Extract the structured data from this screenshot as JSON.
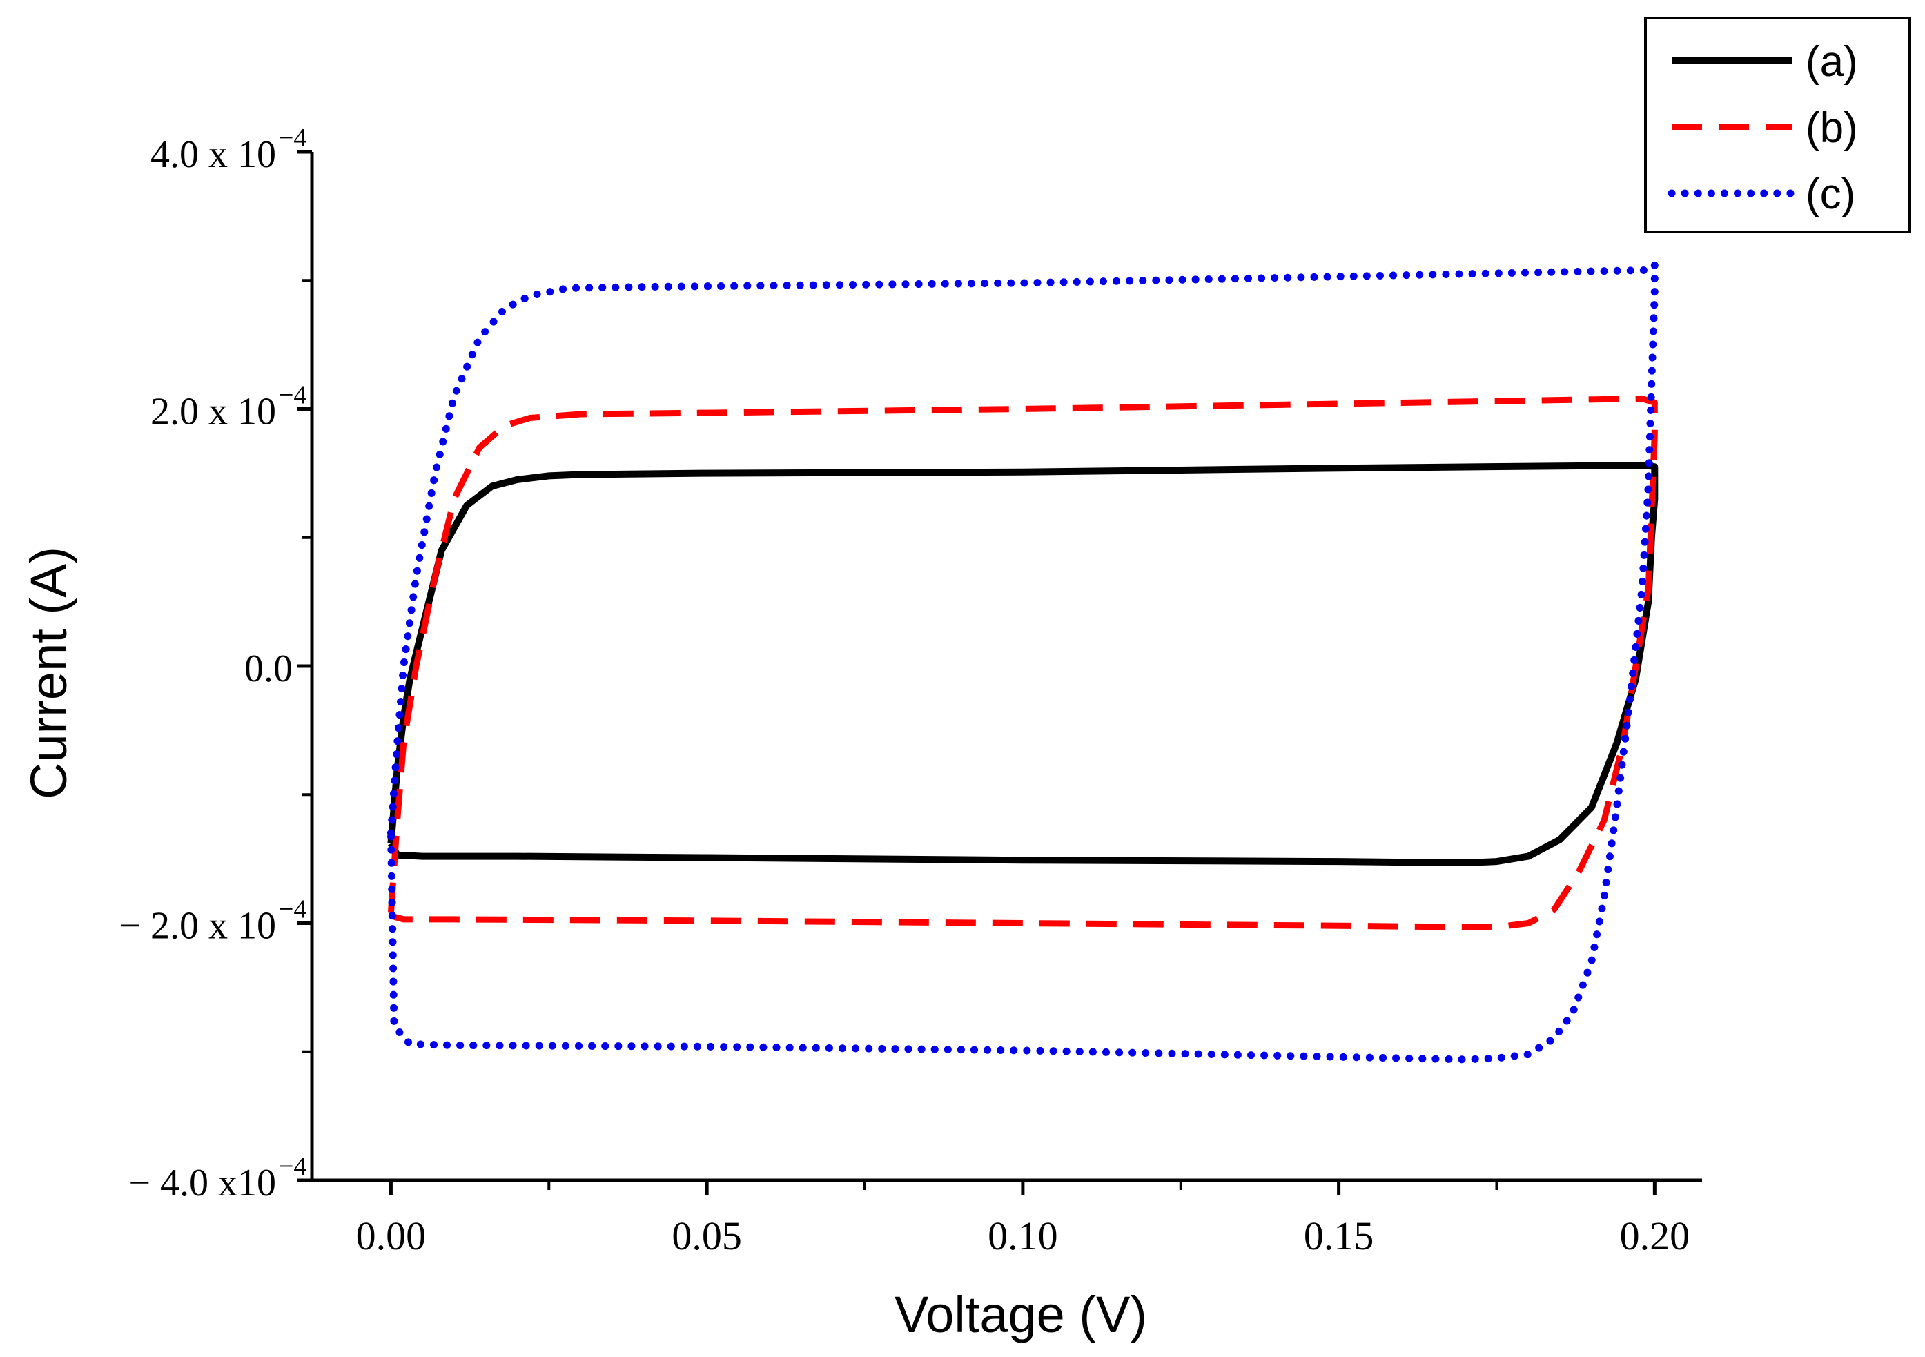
{
  "chart_data": {
    "type": "line",
    "title": "",
    "xlabel": "Voltage (V)",
    "ylabel": "Current (A)",
    "xlim": [
      -0.0125,
      0.2075
    ],
    "ylim": [
      -0.0004,
      0.0004
    ],
    "grid": false,
    "legend_position": "top-right",
    "x_ticks": [
      {
        "value": 0.0,
        "label": "0.00"
      },
      {
        "value": 0.05,
        "label": "0.05"
      },
      {
        "value": 0.1,
        "label": "0.10"
      },
      {
        "value": 0.15,
        "label": "0.15"
      },
      {
        "value": 0.2,
        "label": "0.20"
      }
    ],
    "x_minor_ticks": [
      0.025,
      0.075,
      0.125,
      0.175
    ],
    "y_ticks": [
      {
        "value": 0.0004,
        "mant": "4.0 x 10",
        "exp": "−4"
      },
      {
        "value": 0.0002,
        "mant": "2.0 x 10",
        "exp": "−4"
      },
      {
        "value": 0.0,
        "mant": "0.0",
        "exp": ""
      },
      {
        "value": -0.0002,
        "mant": "− 2.0 x 10",
        "exp": "−4"
      },
      {
        "value": -0.0004,
        "mant": "− 4.0 x10",
        "exp": "−4"
      }
    ],
    "y_minor_ticks": [
      0.0003,
      0.0001,
      -0.0001,
      -0.0003
    ],
    "series": [
      {
        "name": "(a)",
        "color": "#000000",
        "style": "solid",
        "x": [
          0.0,
          0.001,
          0.002,
          0.003,
          0.005,
          0.008,
          0.012,
          0.016,
          0.02,
          0.025,
          0.03,
          0.05,
          0.1,
          0.15,
          0.195,
          0.199,
          0.2,
          0.2,
          0.1995,
          0.199,
          0.197,
          0.194,
          0.19,
          0.185,
          0.18,
          0.175,
          0.17,
          0.15,
          0.1,
          0.05,
          0.02,
          0.005,
          0.001,
          0.0
        ],
        "y": [
          -0.000138,
          -8e-05,
          -4e-05,
          -1e-05,
          3e-05,
          9e-05,
          0.000125,
          0.00014,
          0.000145,
          0.000148,
          0.000149,
          0.00015,
          0.000151,
          0.000154,
          0.000156,
          0.000156,
          0.000155,
          0.00013,
          0.0001,
          5e-05,
          -1e-05,
          -6e-05,
          -0.00011,
          -0.000135,
          -0.000148,
          -0.000152,
          -0.000153,
          -0.000152,
          -0.000151,
          -0.000149,
          -0.000148,
          -0.000148,
          -0.000147,
          -0.000138
        ]
      },
      {
        "name": "(b)",
        "color": "#ff0000",
        "style": "dashed",
        "x": [
          0.0,
          0.001,
          0.002,
          0.004,
          0.007,
          0.01,
          0.014,
          0.018,
          0.022,
          0.03,
          0.05,
          0.1,
          0.15,
          0.198,
          0.2,
          0.2,
          0.1995,
          0.199,
          0.197,
          0.195,
          0.192,
          0.188,
          0.184,
          0.18,
          0.175,
          0.17,
          0.15,
          0.1,
          0.05,
          0.01,
          0.002,
          0.0005,
          0.0
        ],
        "y": [
          -0.000192,
          -0.00012,
          -6e-05,
          0.0,
          7e-05,
          0.00013,
          0.00017,
          0.000187,
          0.000193,
          0.000196,
          0.000197,
          0.0002,
          0.000204,
          0.000208,
          0.000205,
          0.00018,
          0.00012,
          6e-05,
          0.0,
          -6e-05,
          -0.00012,
          -0.00016,
          -0.00019,
          -0.0002,
          -0.000203,
          -0.000203,
          -0.000202,
          -0.0002,
          -0.000198,
          -0.000197,
          -0.000197,
          -0.000195,
          -0.000192
        ]
      },
      {
        "name": "(c)",
        "color": "#0000ee",
        "style": "dotted",
        "x": [
          0.0,
          0.001,
          0.002,
          0.004,
          0.007,
          0.01,
          0.014,
          0.018,
          0.022,
          0.028,
          0.04,
          0.1,
          0.15,
          0.199,
          0.2,
          0.2,
          0.1995,
          0.199,
          0.198,
          0.196,
          0.194,
          0.192,
          0.19,
          0.187,
          0.184,
          0.18,
          0.175,
          0.17,
          0.15,
          0.1,
          0.05,
          0.01,
          0.003,
          0.0005,
          0.0
        ],
        "y": [
          -0.00013,
          -6e-05,
          0.0,
          7e-05,
          0.00015,
          0.00021,
          0.000255,
          0.000278,
          0.000288,
          0.000294,
          0.000295,
          0.000298,
          0.000303,
          0.000308,
          0.000312,
          0.00029,
          0.00022,
          0.00014,
          6e-05,
          -3e-05,
          -0.00011,
          -0.00018,
          -0.00023,
          -0.00027,
          -0.00029,
          -0.000302,
          -0.000305,
          -0.000306,
          -0.000304,
          -0.000299,
          -0.000296,
          -0.000295,
          -0.000294,
          -0.00028,
          -0.00013
        ]
      }
    ]
  }
}
